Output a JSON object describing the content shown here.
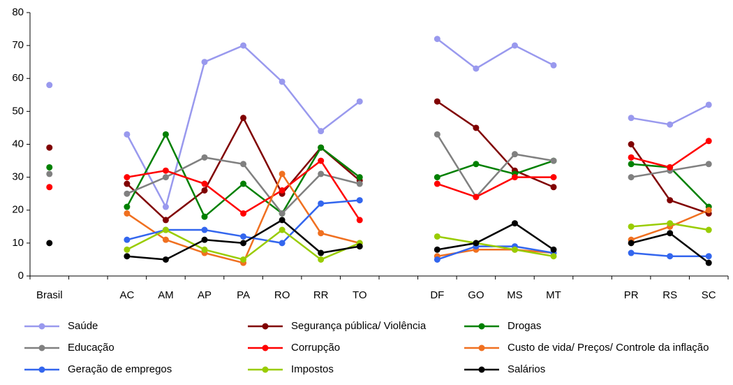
{
  "chart_data": {
    "type": "line",
    "categories": [
      "Brasil",
      null,
      "AC",
      "AM",
      "AP",
      "PA",
      "RO",
      "RR",
      "TO",
      null,
      "DF",
      "GO",
      "MS",
      "MT",
      null,
      "PR",
      "RS",
      "SC"
    ],
    "series": [
      {
        "name": "Saúde",
        "color": "#9999ee",
        "values": [
          58,
          null,
          43,
          21,
          65,
          70,
          59,
          44,
          53,
          null,
          72,
          63,
          70,
          64,
          null,
          48,
          46,
          52
        ]
      },
      {
        "name": "Segurança pública/ Violência",
        "color": "#800000",
        "values": [
          39,
          null,
          28,
          17,
          26,
          48,
          25,
          39,
          29,
          null,
          53,
          45,
          32,
          27,
          null,
          40,
          23,
          19
        ]
      },
      {
        "name": "Drogas",
        "color": "#008000",
        "values": [
          33,
          null,
          21,
          43,
          18,
          28,
          19,
          39,
          30,
          null,
          30,
          34,
          31,
          35,
          null,
          34,
          33,
          21
        ]
      },
      {
        "name": "Educação",
        "color": "#808080",
        "values": [
          31,
          null,
          25,
          30,
          36,
          34,
          19,
          31,
          28,
          null,
          43,
          24,
          37,
          35,
          null,
          30,
          32,
          34
        ]
      },
      {
        "name": "Corrupção",
        "color": "#ff0000",
        "values": [
          27,
          null,
          30,
          32,
          28,
          19,
          26,
          35,
          17,
          null,
          28,
          24,
          30,
          30,
          null,
          36,
          33,
          41
        ]
      },
      {
        "name": "Custo de vida/ Preços/ Controle da inflação",
        "color": "#f07020",
        "values": [
          null,
          null,
          19,
          11,
          7,
          4,
          31,
          13,
          10,
          null,
          6,
          8,
          8,
          7,
          null,
          11,
          15,
          20
        ]
      },
      {
        "name": "Geração de empregos",
        "color": "#3366ee",
        "values": [
          null,
          null,
          11,
          14,
          14,
          12,
          10,
          22,
          23,
          null,
          5,
          9,
          9,
          7,
          null,
          7,
          6,
          6
        ]
      },
      {
        "name": "Impostos",
        "color": "#99cc00",
        "values": [
          null,
          null,
          8,
          14,
          8,
          5,
          14,
          5,
          10,
          null,
          12,
          10,
          8,
          6,
          null,
          15,
          16,
          14
        ]
      },
      {
        "name": "Salários",
        "color": "#000000",
        "values": [
          10,
          null,
          6,
          5,
          11,
          10,
          17,
          7,
          9,
          null,
          8,
          10,
          16,
          8,
          null,
          10,
          13,
          4
        ]
      }
    ],
    "ylim": [
      0,
      80
    ],
    "yticks": [
      0,
      10,
      20,
      30,
      40,
      50,
      60,
      70,
      80
    ],
    "grid": false
  }
}
